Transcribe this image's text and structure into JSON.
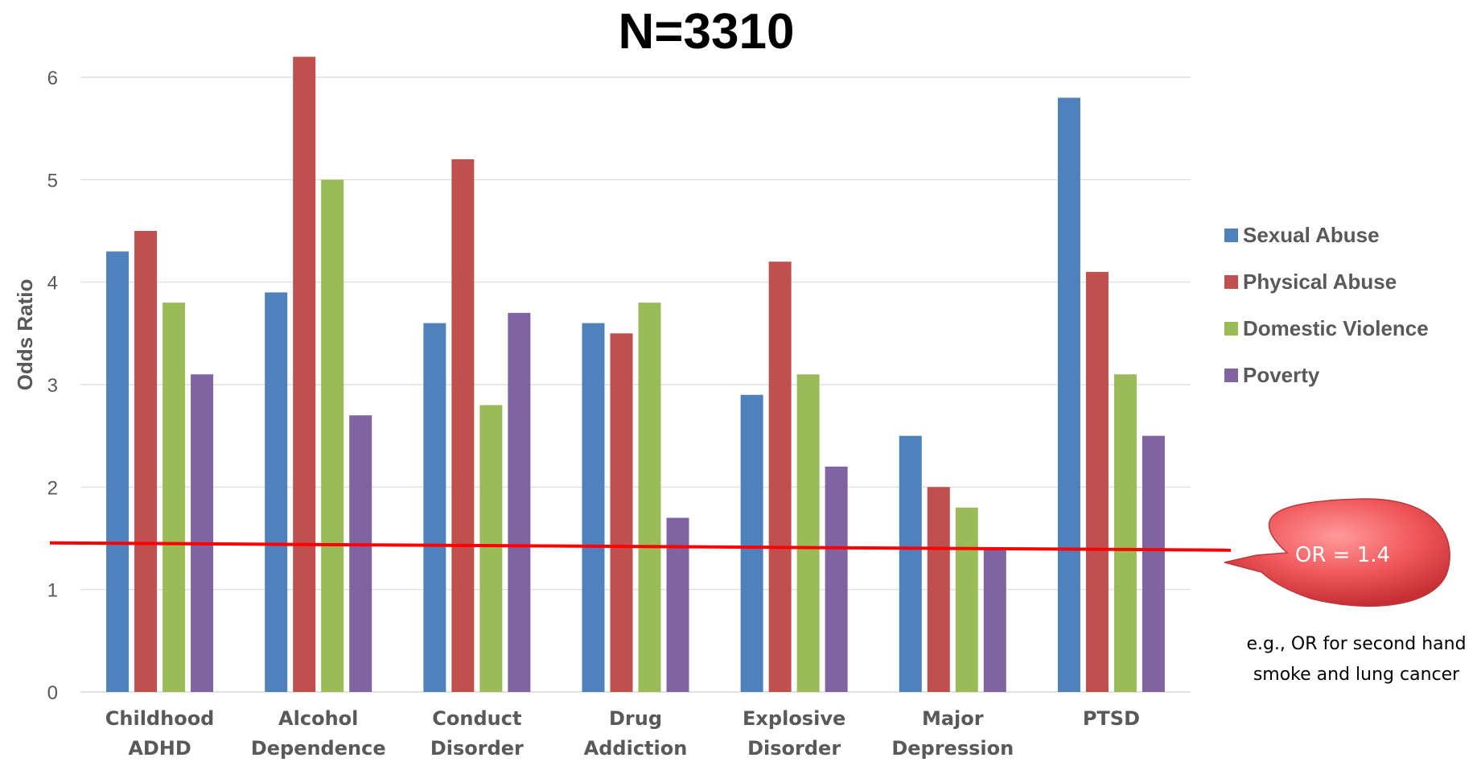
{
  "chart_data": {
    "type": "bar",
    "title": "N=3310",
    "xlabel": "",
    "ylabel": "Odds Ratio",
    "ylim": [
      0,
      6
    ],
    "yticks": [
      "0",
      "1",
      "2",
      "3",
      "4",
      "5",
      "6"
    ],
    "grid": true,
    "legend_position": "right",
    "categories": [
      [
        "Childhood",
        "ADHD"
      ],
      [
        "Alcohol",
        "Dependence"
      ],
      [
        "Conduct",
        "Disorder"
      ],
      [
        "Drug",
        "Addiction"
      ],
      [
        "Explosive",
        "Disorder"
      ],
      [
        "Major",
        "Depression"
      ],
      [
        "PTSD"
      ]
    ],
    "series": [
      {
        "name": "Sexual Abuse",
        "color": "#4f81bd",
        "values": [
          4.3,
          3.9,
          3.6,
          3.6,
          2.9,
          2.5,
          5.8
        ]
      },
      {
        "name": "Physical Abuse",
        "color": "#c0504d",
        "values": [
          4.5,
          6.2,
          5.2,
          3.5,
          4.2,
          2.0,
          4.1
        ]
      },
      {
        "name": "Domestic Violence",
        "color": "#9bbb59",
        "values": [
          3.8,
          5.0,
          2.8,
          3.8,
          3.1,
          1.8,
          3.1
        ]
      },
      {
        "name": "Poverty",
        "color": "#8064a2",
        "values": [
          3.1,
          2.7,
          3.7,
          1.7,
          2.2,
          1.4,
          2.5
        ]
      }
    ],
    "reference_line": {
      "value": 1.4,
      "color": "#ff0000"
    },
    "callout": {
      "text": "OR = 1.4",
      "color": "#e8444a"
    },
    "note": [
      "e.g., OR for second hand",
      "smoke and lung cancer"
    ]
  }
}
